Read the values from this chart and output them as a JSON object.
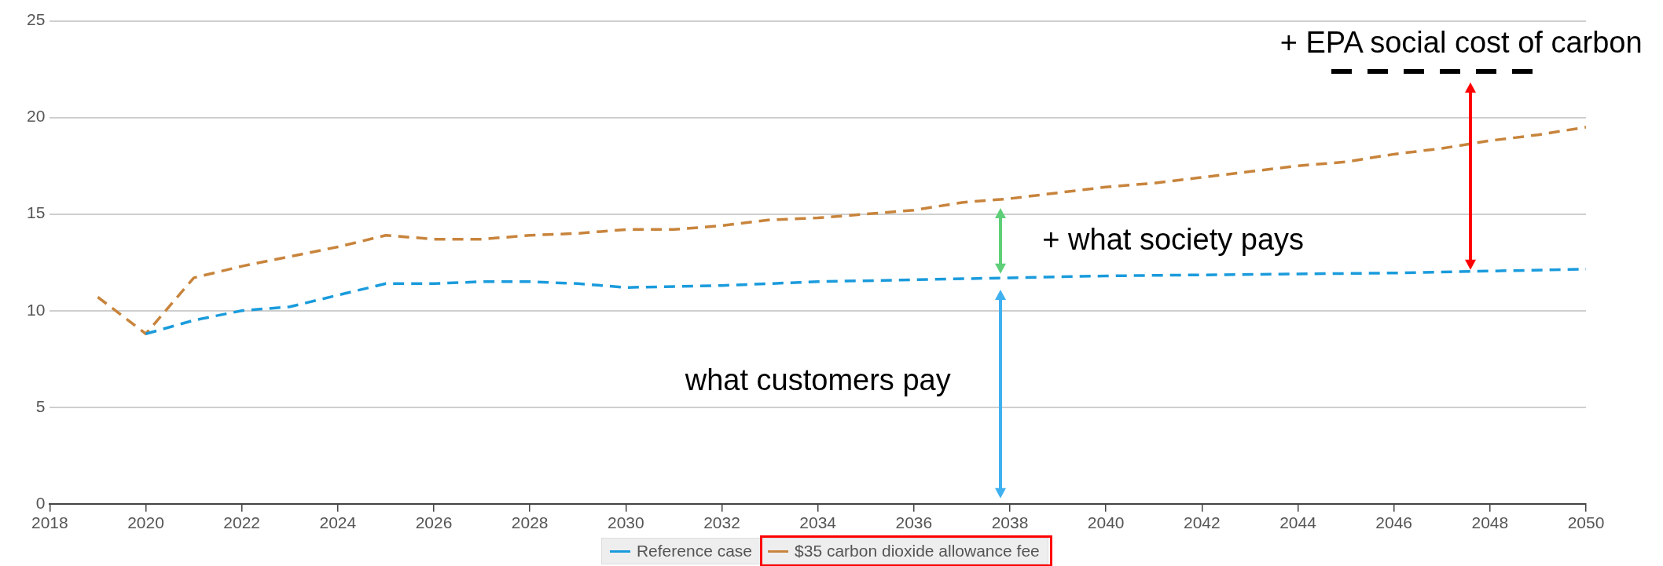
{
  "chart_data": {
    "type": "line",
    "xlim": [
      2018,
      2050
    ],
    "xticks": [
      2018,
      2020,
      2022,
      2024,
      2026,
      2028,
      2030,
      2032,
      2034,
      2036,
      2038,
      2040,
      2042,
      2044,
      2046,
      2048,
      2050
    ],
    "ylim": [
      0,
      25
    ],
    "yticks": [
      0,
      5,
      10,
      15,
      20,
      25
    ],
    "grid": "y",
    "legend": "bottom",
    "line_style": "dashed",
    "marker": "none",
    "series": [
      {
        "name": "Reference case",
        "color": "#1a9bdc",
        "x": [
          2020,
          2021,
          2022,
          2023,
          2024,
          2025,
          2026,
          2027,
          2028,
          2029,
          2030,
          2032,
          2034,
          2036,
          2038,
          2040,
          2042,
          2044,
          2046,
          2048,
          2050
        ],
        "values": [
          8.8,
          9.5,
          10.0,
          10.2,
          10.8,
          11.4,
          11.4,
          11.5,
          11.5,
          11.4,
          11.2,
          11.3,
          11.5,
          11.6,
          11.7,
          11.8,
          11.85,
          11.9,
          11.95,
          12.05,
          12.15
        ]
      },
      {
        "name": "$35 carbon dioxide allowance fee",
        "color": "#c8843c",
        "x": [
          2019,
          2020,
          2021,
          2022,
          2023,
          2024,
          2025,
          2026,
          2027,
          2028,
          2029,
          2030,
          2031,
          2032,
          2033,
          2034,
          2035,
          2036,
          2037,
          2038,
          2039,
          2040,
          2041,
          2042,
          2043,
          2044,
          2045,
          2046,
          2047,
          2048,
          2049,
          2050
        ],
        "values": [
          10.7,
          8.8,
          11.7,
          12.3,
          12.8,
          13.3,
          13.9,
          13.7,
          13.7,
          13.9,
          14.0,
          14.2,
          14.2,
          14.4,
          14.7,
          14.8,
          15.0,
          15.2,
          15.6,
          15.8,
          16.1,
          16.4,
          16.6,
          16.9,
          17.2,
          17.5,
          17.7,
          18.1,
          18.4,
          18.8,
          19.1,
          19.5
        ]
      }
    ],
    "annotations": [
      "what customers pay",
      "+ what society pays",
      "+ EPA social cost of carbon"
    ]
  }
}
